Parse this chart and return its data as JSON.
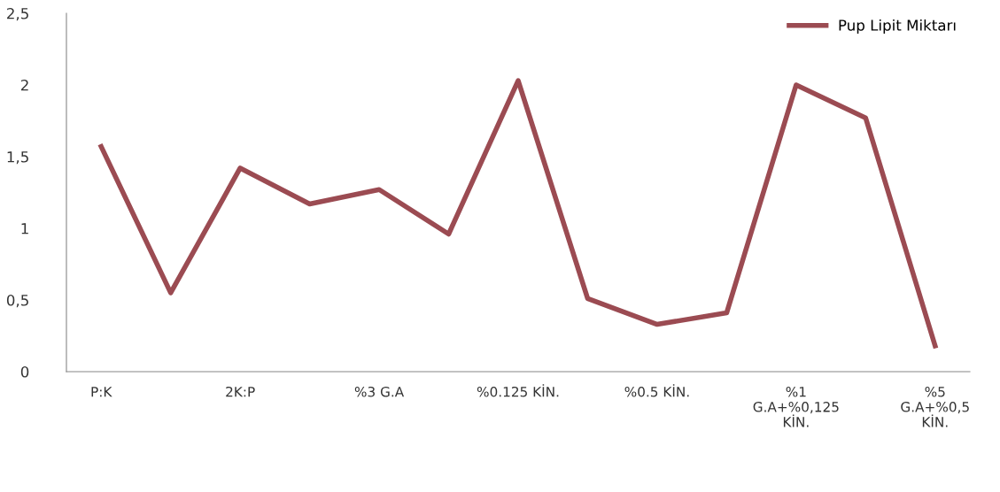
{
  "chart_data": {
    "type": "line",
    "categories": [
      "P:K",
      null,
      "2K:P",
      null,
      "%3 G.A",
      null,
      "%0.125 KİN.",
      null,
      "%0.5 KİN.",
      null,
      "%1\nG.A+%0,125\nKİN.",
      null,
      "%5\nG.A+%0,5\nKİN."
    ],
    "series": [
      {
        "name": "Pup Lipit Miktarı",
        "color": "#9b4b52",
        "values": [
          1.57,
          0.55,
          1.42,
          1.17,
          1.27,
          0.96,
          2.03,
          0.51,
          0.33,
          0.41,
          2.0,
          1.77,
          0.18
        ]
      }
    ],
    "ylim": [
      0,
      2.5
    ],
    "yticks": [
      {
        "value": 0,
        "label": "0"
      },
      {
        "value": 0.5,
        "label": "0,5"
      },
      {
        "value": 1,
        "label": "1"
      },
      {
        "value": 1.5,
        "label": "1,5"
      },
      {
        "value": 2,
        "label": "2"
      },
      {
        "value": 2.5,
        "label": "2,5"
      }
    ],
    "grid": false,
    "legend": "top right",
    "marker": "none",
    "line_style": "solid"
  }
}
